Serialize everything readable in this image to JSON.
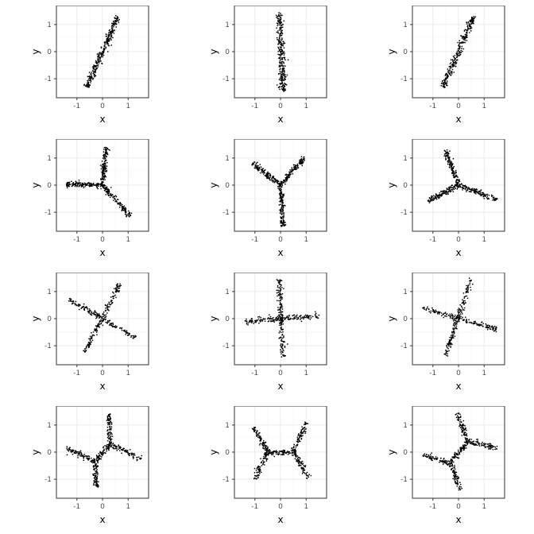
{
  "colors": {
    "background": "#ffffff",
    "panel_border": "#333333",
    "grid_major": "#ebebeb",
    "grid_minor": "#f5f5f5",
    "points": "#000000",
    "tick_text": "#4d4d4d"
  },
  "chart_data": [
    {
      "type": "scatter",
      "xlabel": "x",
      "ylabel": "y",
      "xlim": [
        -1.8,
        1.8
      ],
      "ylim": [
        -1.7,
        1.7
      ],
      "x_ticks": [
        -1,
        0,
        1
      ],
      "y_ticks": [
        -1,
        0,
        1
      ],
      "x_tick_labels": [
        "-1",
        "0",
        "1"
      ],
      "y_tick_labels": [
        "-1",
        "0",
        "1"
      ],
      "grid": true,
      "arms": [
        [
          [
            -0.6,
            -1.3
          ],
          [
            0.6,
            1.3
          ]
        ]
      ],
      "spread": 0.06,
      "points_per_arm": 300
    },
    {
      "type": "scatter",
      "xlabel": "x",
      "ylabel": "y",
      "xlim": [
        -1.8,
        1.8
      ],
      "ylim": [
        -1.7,
        1.7
      ],
      "x_ticks": [
        -1,
        0,
        1
      ],
      "y_ticks": [
        -1,
        0,
        1
      ],
      "x_tick_labels": [
        "-1",
        "0",
        "1"
      ],
      "y_tick_labels": [
        "-1",
        "0",
        "1"
      ],
      "grid": true,
      "arms": [
        [
          [
            -0.05,
            1.45
          ],
          [
            0.1,
            -1.45
          ]
        ]
      ],
      "spread": 0.07,
      "points_per_arm": 300
    },
    {
      "type": "scatter",
      "xlabel": "x",
      "ylabel": "y",
      "xlim": [
        -1.8,
        1.8
      ],
      "ylim": [
        -1.7,
        1.7
      ],
      "x_ticks": [
        -1,
        0,
        1
      ],
      "y_ticks": [
        -1,
        0,
        1
      ],
      "x_tick_labels": [
        "-1",
        "0",
        "1"
      ],
      "y_tick_labels": [
        "-1",
        "0",
        "1"
      ],
      "grid": true,
      "arms": [
        [
          [
            -0.6,
            -1.3
          ],
          [
            0.6,
            1.3
          ]
        ]
      ],
      "spread": 0.06,
      "points_per_arm": 300
    },
    {
      "type": "scatter",
      "xlabel": "x",
      "ylabel": "y",
      "xlim": [
        -1.8,
        1.8
      ],
      "ylim": [
        -1.7,
        1.7
      ],
      "x_ticks": [
        -1,
        0,
        1
      ],
      "y_ticks": [
        -1,
        0,
        1
      ],
      "x_tick_labels": [
        "-1",
        "0",
        "1"
      ],
      "y_tick_labels": [
        "-1",
        "0",
        "1"
      ],
      "grid": true,
      "arms": [
        [
          [
            0,
            0
          ],
          [
            0.15,
            1.4
          ]
        ],
        [
          [
            0,
            0
          ],
          [
            -1.4,
            0.05
          ]
        ],
        [
          [
            0,
            0
          ],
          [
            1.1,
            -1.15
          ]
        ]
      ],
      "spread": 0.05,
      "points_per_arm": 150
    },
    {
      "type": "scatter",
      "xlabel": "x",
      "ylabel": "y",
      "xlim": [
        -1.8,
        1.8
      ],
      "ylim": [
        -1.7,
        1.7
      ],
      "x_ticks": [
        -1,
        0,
        1
      ],
      "y_ticks": [
        -1,
        0,
        1
      ],
      "x_tick_labels": [
        "-1",
        "0",
        "1"
      ],
      "y_tick_labels": [
        "-1",
        "0",
        "1"
      ],
      "grid": true,
      "arms": [
        [
          [
            0,
            0
          ],
          [
            -1.1,
            0.8
          ]
        ],
        [
          [
            0,
            0
          ],
          [
            0.95,
            1.05
          ]
        ],
        [
          [
            0,
            0
          ],
          [
            0.1,
            -1.5
          ]
        ]
      ],
      "spread": 0.05,
      "points_per_arm": 150
    },
    {
      "type": "scatter",
      "xlabel": "x",
      "ylabel": "y",
      "xlim": [
        -1.8,
        1.8
      ],
      "ylim": [
        -1.7,
        1.7
      ],
      "x_ticks": [
        -1,
        0,
        1
      ],
      "y_ticks": [
        -1,
        0,
        1
      ],
      "x_tick_labels": [
        "-1",
        "0",
        "1"
      ],
      "y_tick_labels": [
        "-1",
        "0",
        "1"
      ],
      "grid": true,
      "arms": [
        [
          [
            0,
            0
          ],
          [
            -0.5,
            1.3
          ]
        ],
        [
          [
            0,
            0
          ],
          [
            -1.2,
            -0.6
          ]
        ],
        [
          [
            0,
            0
          ],
          [
            1.5,
            -0.55
          ]
        ]
      ],
      "spread": 0.05,
      "points_per_arm": 150
    },
    {
      "type": "scatter",
      "xlabel": "x",
      "ylabel": "y",
      "xlim": [
        -1.8,
        1.8
      ],
      "ylim": [
        -1.7,
        1.7
      ],
      "x_ticks": [
        -1,
        0,
        1
      ],
      "y_ticks": [
        -1,
        0,
        1
      ],
      "x_tick_labels": [
        "-1",
        "0",
        "1"
      ],
      "y_tick_labels": [
        "-1",
        "0",
        "1"
      ],
      "grid": true,
      "arms": [
        [
          [
            -0.7,
            -1.25
          ],
          [
            0.7,
            1.3
          ]
        ],
        [
          [
            -1.3,
            0.7
          ],
          [
            1.3,
            -0.7
          ]
        ]
      ],
      "spread": 0.05,
      "points_per_arm": 180
    },
    {
      "type": "scatter",
      "xlabel": "x",
      "ylabel": "y",
      "xlim": [
        -1.8,
        1.8
      ],
      "ylim": [
        -1.7,
        1.7
      ],
      "x_ticks": [
        -1,
        0,
        1
      ],
      "y_ticks": [
        -1,
        0,
        1
      ],
      "x_tick_labels": [
        "-1",
        "0",
        "1"
      ],
      "y_tick_labels": [
        "-1",
        "0",
        "1"
      ],
      "grid": true,
      "arms": [
        [
          [
            -0.05,
            1.45
          ],
          [
            0.1,
            -1.4
          ]
        ],
        [
          [
            -1.4,
            -0.1
          ],
          [
            1.5,
            0.1
          ]
        ]
      ],
      "spread": 0.05,
      "points_per_arm": 180
    },
    {
      "type": "scatter",
      "xlabel": "x",
      "ylabel": "y",
      "xlim": [
        -1.8,
        1.8
      ],
      "ylim": [
        -1.7,
        1.7
      ],
      "x_ticks": [
        -1,
        0,
        1
      ],
      "y_ticks": [
        -1,
        0,
        1
      ],
      "x_tick_labels": [
        "-1",
        "0",
        "1"
      ],
      "y_tick_labels": [
        "-1",
        "0",
        "1"
      ],
      "grid": true,
      "arms": [
        [
          [
            -0.5,
            -1.35
          ],
          [
            0.5,
            1.5
          ]
        ],
        [
          [
            -1.4,
            0.4
          ],
          [
            1.5,
            -0.4
          ]
        ]
      ],
      "spread": 0.05,
      "points_per_arm": 180
    },
    {
      "type": "scatter",
      "xlabel": "x",
      "ylabel": "y",
      "xlim": [
        -1.8,
        1.8
      ],
      "ylim": [
        -1.7,
        1.7
      ],
      "x_ticks": [
        -1,
        0,
        1
      ],
      "y_ticks": [
        -1,
        0,
        1
      ],
      "x_tick_labels": [
        "-1",
        "0",
        "1"
      ],
      "y_tick_labels": [
        "-1",
        "0",
        "1"
      ],
      "grid": true,
      "arms": [
        [
          [
            -0.3,
            -0.35
          ],
          [
            -1.4,
            0.15
          ]
        ],
        [
          [
            -0.3,
            -0.35
          ],
          [
            -0.25,
            -1.3
          ]
        ],
        [
          [
            -0.3,
            -0.35
          ],
          [
            0.3,
            0.3
          ]
        ],
        [
          [
            0.3,
            0.3
          ],
          [
            0.25,
            1.4
          ]
        ],
        [
          [
            0.3,
            0.3
          ],
          [
            1.5,
            -0.25
          ]
        ]
      ],
      "spread": 0.05,
      "points_per_arm": 90
    },
    {
      "type": "scatter",
      "xlabel": "x",
      "ylabel": "y",
      "xlim": [
        -1.8,
        1.8
      ],
      "ylim": [
        -1.7,
        1.7
      ],
      "x_ticks": [
        -1,
        0,
        1
      ],
      "y_ticks": [
        -1,
        0,
        1
      ],
      "x_tick_labels": [
        "-1",
        "0",
        "1"
      ],
      "y_tick_labels": [
        "-1",
        "0",
        "1"
      ],
      "grid": true,
      "arms": [
        [
          [
            -0.5,
            0
          ],
          [
            -1.05,
            0.95
          ]
        ],
        [
          [
            -0.5,
            0
          ],
          [
            -1.0,
            -1.0
          ]
        ],
        [
          [
            -0.5,
            0
          ],
          [
            0.5,
            0
          ]
        ],
        [
          [
            0.5,
            0
          ],
          [
            1.0,
            1.1
          ]
        ],
        [
          [
            0.5,
            0
          ],
          [
            1.1,
            -0.95
          ]
        ]
      ],
      "spread": 0.05,
      "points_per_arm": 90
    },
    {
      "type": "scatter",
      "xlabel": "x",
      "ylabel": "y",
      "xlim": [
        -1.8,
        1.8
      ],
      "ylim": [
        -1.7,
        1.7
      ],
      "x_ticks": [
        -1,
        0,
        1
      ],
      "y_ticks": [
        -1,
        0,
        1
      ],
      "x_tick_labels": [
        "-1",
        "0",
        "1"
      ],
      "y_tick_labels": [
        "-1",
        "0",
        "1"
      ],
      "grid": true,
      "arms": [
        [
          [
            -0.3,
            -0.4
          ],
          [
            -1.4,
            -0.1
          ]
        ],
        [
          [
            -0.3,
            -0.4
          ],
          [
            0.05,
            -1.4
          ]
        ],
        [
          [
            -0.3,
            -0.4
          ],
          [
            0.35,
            0.4
          ]
        ],
        [
          [
            0.35,
            0.4
          ],
          [
            -0.05,
            1.45
          ]
        ],
        [
          [
            0.35,
            0.4
          ],
          [
            1.5,
            0.15
          ]
        ]
      ],
      "spread": 0.05,
      "points_per_arm": 90
    }
  ]
}
